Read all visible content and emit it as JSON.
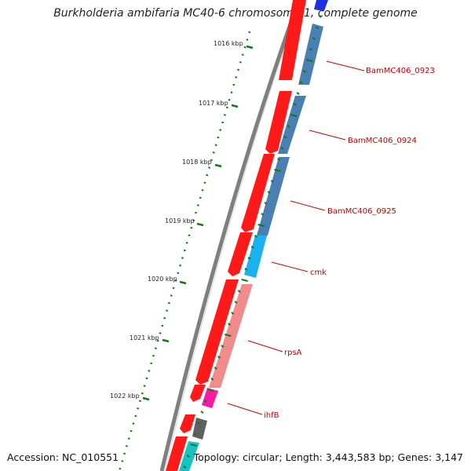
{
  "title": "Burkholderia ambifaria MC40-6 chromosome 1, complete genome",
  "footer": {
    "accession": "Accession: NC_010551",
    "topology": "Topology: circular; Length: 3,443,583 bp; Genes: 3,147"
  },
  "colors": {
    "backbone": "#808080",
    "cds_red": "#ff0000",
    "steel_blue": "#4a7fb3",
    "light_blue": "#1ab2f0",
    "salmon": "#f08c8c",
    "magenta": "#ff1aa6",
    "dark_gray": "#606060",
    "teal": "#19c2c2",
    "tick_green": "#127a12",
    "label_red": "#cc0000"
  },
  "kbp_ticks": [
    "1016 kbp",
    "1017 kbp",
    "1018 kbp",
    "1019 kbp",
    "1020 kbp",
    "1021 kbp",
    "1022 kbp"
  ],
  "gene_labels": [
    "BamMC406_0923",
    "BamMC406_0924",
    "BamMC406_0925",
    "cmk",
    "rpsA",
    "ihfB"
  ]
}
